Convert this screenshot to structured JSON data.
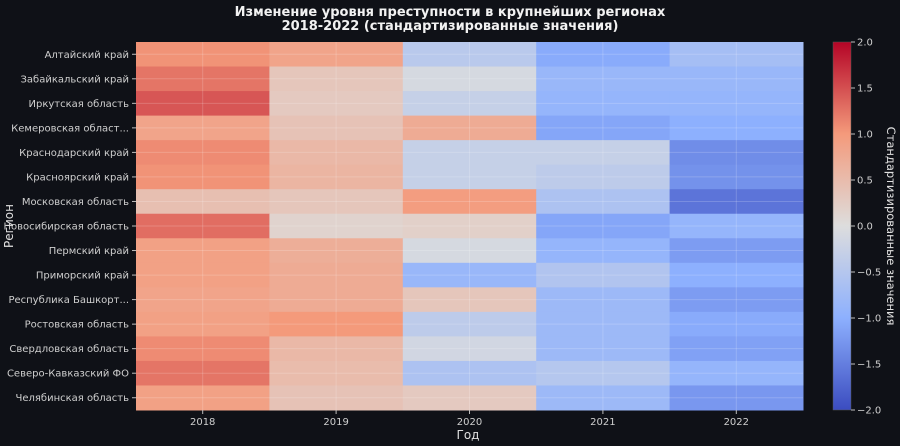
{
  "chart_data": {
    "type": "heatmap",
    "title": "Изменение уровня преступности в крупнейших регионах",
    "subtitle": "2018-2022 (стандартизированные значения)",
    "xlabel": "Год",
    "ylabel": "Регион",
    "colorbar_label": "Стандартизированные значения",
    "colormap": "coolwarm",
    "vmin": -2.0,
    "vmax": 2.0,
    "colorbar_ticks": [
      2.0,
      1.5,
      1.0,
      0.5,
      0.0,
      -0.5,
      -1.0,
      -1.5,
      -2.0
    ],
    "colorbar_tick_labels": [
      "2.0",
      "1.5",
      "1.0",
      "0.5",
      "0.0",
      "−0.5",
      "−1.0",
      "−1.5",
      "−2.0"
    ],
    "columns": [
      "2018",
      "2019",
      "2020",
      "2021",
      "2022"
    ],
    "rows": [
      "Алтайский край",
      "Забайкальский край",
      "Иркутская область",
      "Кемеровская област...",
      "Краснодарский край",
      "Красноярский край",
      "Московская область",
      "Новосибирская область",
      "Пермский край",
      "Приморский край",
      "Республика Башкорт...",
      "Ростовская область",
      "Свердловская область",
      "Северо-Кавказский ФО",
      "Челябинская область"
    ],
    "values": [
      [
        1.05,
        0.85,
        -0.45,
        -1.05,
        -0.7
      ],
      [
        1.25,
        0.35,
        -0.1,
        -0.85,
        -0.85
      ],
      [
        1.45,
        0.3,
        -0.3,
        -0.9,
        -0.9
      ],
      [
        0.85,
        0.4,
        0.75,
        -1.1,
        -1.0
      ],
      [
        1.1,
        0.55,
        -0.3,
        -0.3,
        -1.35
      ],
      [
        1.05,
        0.6,
        -0.3,
        -0.4,
        -1.3
      ],
      [
        0.45,
        0.35,
        0.95,
        -0.6,
        -1.6
      ],
      [
        1.3,
        0.15,
        0.2,
        -1.1,
        -0.9
      ],
      [
        0.9,
        0.7,
        -0.1,
        -0.9,
        -1.2
      ],
      [
        0.9,
        0.75,
        -0.85,
        -0.55,
        -1.0
      ],
      [
        0.85,
        0.75,
        0.35,
        -0.8,
        -1.2
      ],
      [
        0.9,
        1.0,
        -0.4,
        -0.8,
        -1.05
      ],
      [
        1.1,
        0.55,
        -0.15,
        -0.8,
        -1.15
      ],
      [
        1.25,
        0.5,
        -0.6,
        -0.5,
        -0.9
      ],
      [
        0.9,
        0.4,
        0.3,
        -0.8,
        -1.25
      ]
    ]
  }
}
